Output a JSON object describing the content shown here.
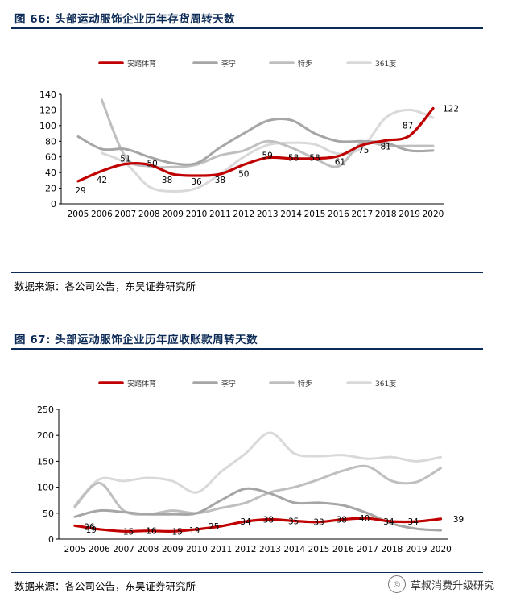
{
  "figure1": {
    "title": "图 66:  头部运动服饰企业历年存货周转天数",
    "source": "数据来源：各公司公告，东吴证券研究所"
  },
  "figure2": {
    "title": "图 67:  头部运动服饰企业历年应收账款周转天数",
    "source": "数据来源：各公司公告，东吴证券研究所"
  },
  "watermark": {
    "text": "草叔消费升级研究",
    "icon": "wechat-icon"
  },
  "chart_data": [
    {
      "type": "line",
      "title": "头部运动服饰企业历年存货周转天数",
      "x": [
        "2005",
        "2006",
        "2007",
        "2008",
        "2009",
        "2010",
        "2011",
        "2012",
        "2013",
        "2014",
        "2015",
        "2016",
        "2017",
        "2018",
        "2019",
        "2020"
      ],
      "ylim": [
        0,
        140
      ],
      "yticks": [
        0,
        20,
        40,
        60,
        80,
        100,
        120,
        140
      ],
      "legend_position": "top",
      "grid": false,
      "series": [
        {
          "name": "安踏体育",
          "color": "#c00000",
          "values": [
            29,
            42,
            51,
            50,
            38,
            36,
            38,
            50,
            59,
            58,
            58,
            61,
            75,
            81,
            87,
            122
          ],
          "labels": [
            "29",
            "42",
            "51",
            "50",
            "38",
            "36",
            "38",
            "50",
            "59",
            "58",
            "58",
            "61",
            "75",
            "81",
            "87",
            "122"
          ]
        },
        {
          "name": "李宁",
          "color": "#a6a6a6",
          "values": [
            86,
            70,
            70,
            60,
            52,
            52,
            72,
            90,
            106,
            107,
            90,
            80,
            80,
            78,
            68,
            68
          ]
        },
        {
          "name": "特步",
          "color": "#bfbfbf",
          "values": [
            null,
            133,
            60,
            48,
            47,
            50,
            62,
            68,
            80,
            72,
            58,
            48,
            78,
            74,
            74,
            74
          ]
        },
        {
          "name": "361度",
          "color": "#d9d9d9",
          "values": [
            null,
            65,
            52,
            22,
            16,
            20,
            38,
            60,
            75,
            78,
            76,
            64,
            72,
            110,
            120,
            110
          ]
        }
      ]
    },
    {
      "type": "line",
      "title": "头部运动服饰企业历年应收账款周转天数",
      "x": [
        "2005",
        "2006",
        "2007",
        "2008",
        "2009",
        "2010",
        "2011",
        "2012",
        "2013",
        "2014",
        "2015",
        "2016",
        "2017",
        "2018",
        "2019",
        "2020"
      ],
      "ylim": [
        0,
        250
      ],
      "yticks": [
        0,
        50,
        100,
        150,
        200,
        250
      ],
      "legend_position": "top",
      "grid": false,
      "series": [
        {
          "name": "安踏体育",
          "color": "#c00000",
          "values": [
            26,
            19,
            15,
            16,
            15,
            19,
            25,
            34,
            38,
            35,
            33,
            38,
            40,
            34,
            34,
            39
          ],
          "labels": [
            "26",
            "19",
            "15",
            "16",
            "15",
            "19",
            "25",
            "34",
            "38",
            "35",
            "33",
            "38",
            "40",
            "34",
            "34",
            "39"
          ]
        },
        {
          "name": "李宁",
          "color": "#a6a6a6",
          "values": [
            43,
            55,
            52,
            48,
            48,
            50,
            75,
            97,
            88,
            70,
            70,
            65,
            50,
            30,
            20,
            17
          ]
        },
        {
          "name": "特步",
          "color": "#bfbfbf",
          "values": [
            62,
            108,
            55,
            48,
            55,
            50,
            60,
            70,
            90,
            100,
            115,
            132,
            140,
            112,
            110,
            137
          ]
        },
        {
          "name": "361度",
          "color": "#d9d9d9",
          "values": [
            65,
            115,
            112,
            118,
            112,
            90,
            130,
            165,
            205,
            165,
            160,
            162,
            155,
            158,
            150,
            158
          ]
        }
      ]
    }
  ]
}
